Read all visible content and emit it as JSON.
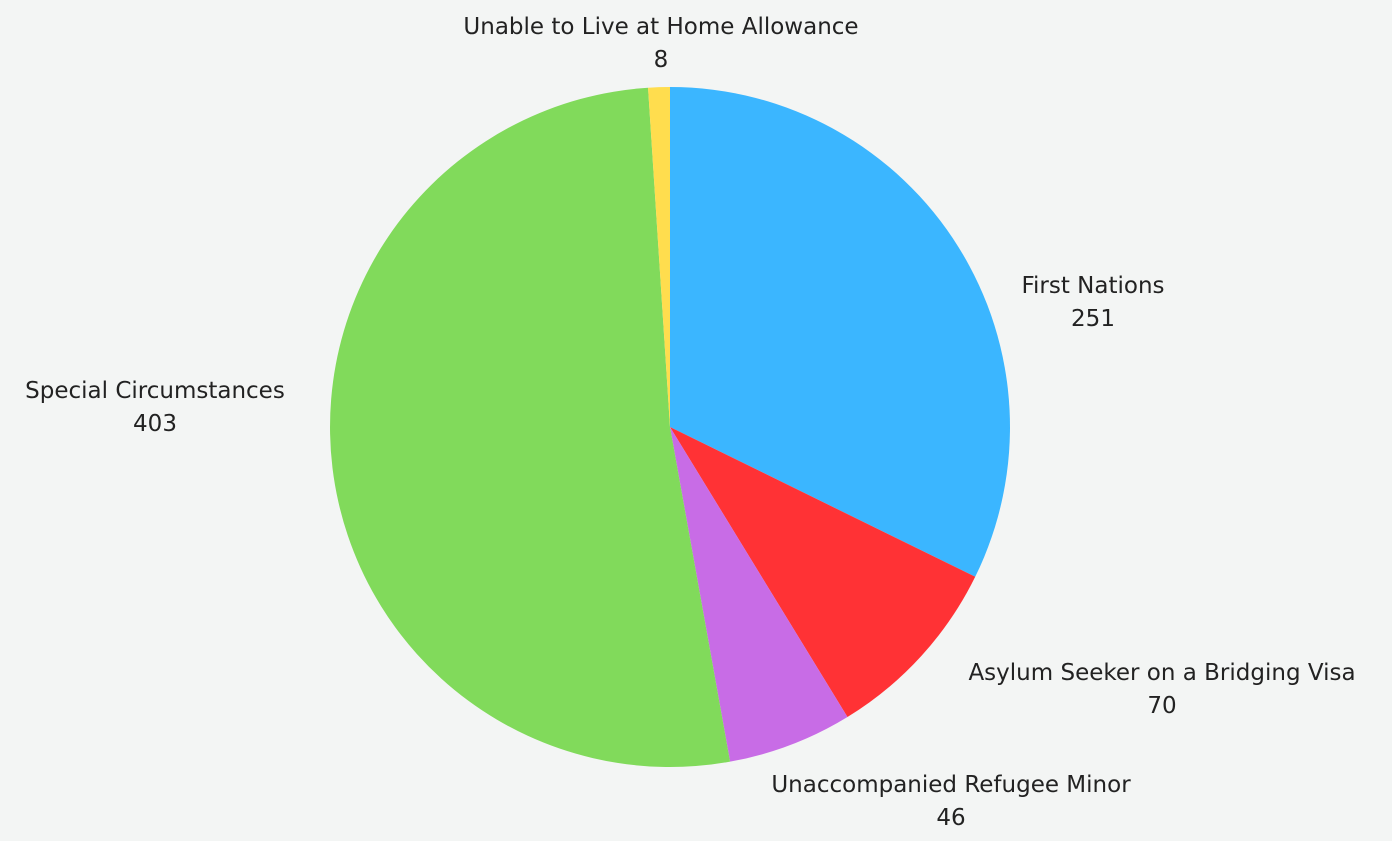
{
  "chart_data": {
    "type": "pie",
    "title": "",
    "start_angle_deg": 0,
    "direction": "clockwise",
    "slices": [
      {
        "label": "First Nations",
        "value": 251,
        "color": "#3bb6ff"
      },
      {
        "label": "Asylum Seeker on a Bridging Visa",
        "value": 70,
        "color": "#ff3235"
      },
      {
        "label": "Unaccompanied Refugee Minor",
        "value": 46,
        "color": "#c86ce6"
      },
      {
        "label": "Special Circumstances",
        "value": 403,
        "color": "#81da5b"
      },
      {
        "label": "Unable to Live at Home Allowance",
        "value": 8,
        "color": "#ffdd4e"
      }
    ]
  }
}
